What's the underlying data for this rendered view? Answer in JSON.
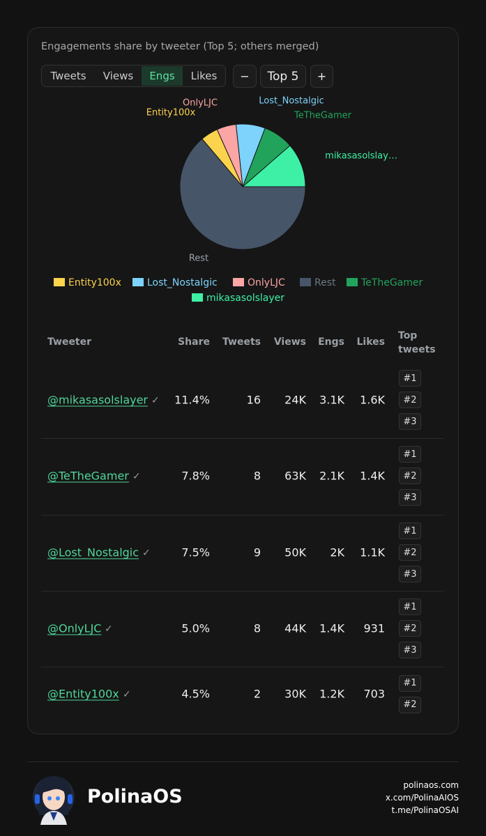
{
  "header": {
    "title": "Engagements share by tweeter (Top 5; others merged)"
  },
  "controls": {
    "tabs": [
      "Tweets",
      "Views",
      "Engs",
      "Likes"
    ],
    "active_tab": 2,
    "minus": "−",
    "top_n": "Top 5",
    "plus": "+"
  },
  "chart_data": {
    "type": "pie",
    "categories": [
      "mikasasolslayer",
      "TeTheGamer",
      "Lost_Nostalgic",
      "OnlyLJC",
      "Entity100x",
      "Rest"
    ],
    "slice_labels": [
      "mikasasolslay…",
      "TeTheGamer",
      "Lost_Nostalgic",
      "OnlyLJC",
      "Entity100x",
      "Rest"
    ],
    "values": [
      11.4,
      7.8,
      7.5,
      5.0,
      4.5,
      63.8
    ],
    "colors": [
      "#3ef0a6",
      "#22a35c",
      "#7dd3fc",
      "#fca5a5",
      "#fcd34d",
      "#475569"
    ],
    "legend": [
      "Entity100x",
      "Lost_Nostalgic",
      "OnlyLJC",
      "Rest",
      "TeTheGamer",
      "mikasasolslayer"
    ]
  },
  "table": {
    "headers": [
      "Tweeter",
      "Share",
      "Tweets",
      "Views",
      "Engs",
      "Likes",
      "Top tweets"
    ],
    "rows": [
      {
        "tweeter": "@mikasasolslayer",
        "check": "✓",
        "share": "11.4%",
        "tweets": "16",
        "views": "24K",
        "engs": "3.1K",
        "likes": "1.6K",
        "top_tweets": [
          "#1",
          "#2",
          "#3"
        ]
      },
      {
        "tweeter": "@TeTheGamer",
        "check": "✓",
        "share": "7.8%",
        "tweets": "8",
        "views": "63K",
        "engs": "2.1K",
        "likes": "1.4K",
        "top_tweets": [
          "#1",
          "#2",
          "#3"
        ]
      },
      {
        "tweeter": "@Lost_Nostalgic",
        "check": "✓",
        "share": "7.5%",
        "tweets": "9",
        "views": "50K",
        "engs": "2K",
        "likes": "1.1K",
        "top_tweets": [
          "#1",
          "#2",
          "#3"
        ]
      },
      {
        "tweeter": "@OnlyLJC",
        "check": "✓",
        "share": "5.0%",
        "tweets": "8",
        "views": "44K",
        "engs": "1.4K",
        "likes": "931",
        "top_tweets": [
          "#1",
          "#2",
          "#3"
        ]
      },
      {
        "tweeter": "@Entity100x",
        "check": "✓",
        "share": "4.5%",
        "tweets": "2",
        "views": "30K",
        "engs": "1.2K",
        "likes": "703",
        "top_tweets": [
          "#1",
          "#2"
        ]
      }
    ]
  },
  "footer": {
    "brand": "PolinaOS",
    "links": [
      "polinaos.com",
      "x.com/PolinaAIOS",
      "t.me/PolinaOSAI"
    ]
  }
}
